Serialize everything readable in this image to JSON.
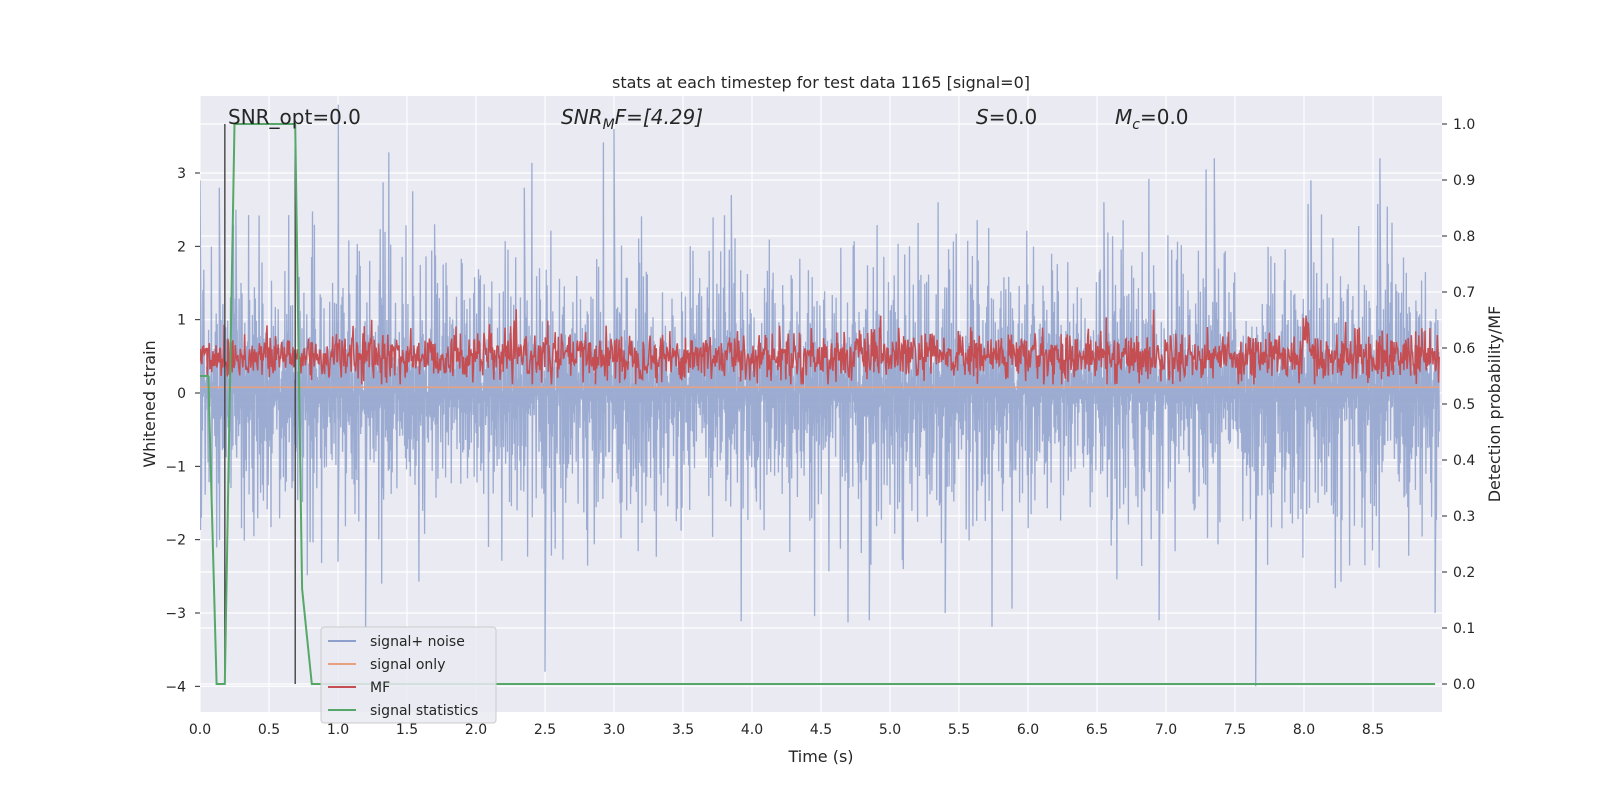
{
  "chart_data": {
    "type": "line",
    "title": "stats at each timestep for test data 1165 [signal=0]",
    "xlabel": "Time (s)",
    "ylabel": "Whitened strain",
    "ylabel_right": "Detection probability/MF",
    "xlim": [
      0.0,
      9.0
    ],
    "ylim": [
      -4.35,
      4.05
    ],
    "ylim_right": [
      -0.05,
      1.05
    ],
    "x_ticks": [
      "0.0",
      "0.5",
      "1.0",
      "1.5",
      "2.0",
      "2.5",
      "3.0",
      "3.5",
      "4.0",
      "4.5",
      "5.0",
      "5.5",
      "6.0",
      "6.5",
      "7.0",
      "7.5",
      "8.0",
      "8.5"
    ],
    "y_ticks": [
      "3",
      "2",
      "1",
      "0",
      "−1",
      "−2",
      "−3",
      "−4"
    ],
    "y_ticks_right": [
      "1.0",
      "0.9",
      "0.8",
      "0.7",
      "0.6",
      "0.5",
      "0.4",
      "0.3",
      "0.2",
      "0.1",
      "0.0"
    ],
    "grid": true,
    "legend_position": "lower-left",
    "annotations": {
      "snr_opt": "SNR_opt=0.0",
      "snr_mf_sym": "SNR",
      "snr_mf_sub": "M",
      "snr_mf_rest": "F=[4.29]",
      "s_sym": "S",
      "s_rest": "=0.0",
      "mc_sym": "M",
      "mc_sub": "c",
      "mc_rest": "=0.0"
    },
    "vertical_lines_x": [
      0.18,
      0.69
    ],
    "series": [
      {
        "name": "signal+ noise",
        "color": "#8da0cb",
        "description_values": "whitened strain noise, approximately zero-mean, amplitude mostly within ±2, peaks to 3.6 near 3.0 s and -4.0 near 7.65 s",
        "sample_peaks": [
          [
            0.0,
            2.9
          ],
          [
            0.14,
            2.8
          ],
          [
            0.26,
            2.5
          ],
          [
            1.0,
            -2.3
          ],
          [
            1.2,
            -3.2
          ],
          [
            1.7,
            2.3
          ],
          [
            2.35,
            2.8
          ],
          [
            2.5,
            -3.8
          ],
          [
            3.0,
            3.6
          ],
          [
            3.85,
            2.7
          ],
          [
            4.85,
            -3.1
          ],
          [
            5.4,
            -3.0
          ],
          [
            6.55,
            2.6
          ],
          [
            6.95,
            -3.1
          ],
          [
            7.35,
            3.2
          ],
          [
            7.65,
            -4.0
          ],
          [
            8.05,
            2.9
          ],
          [
            8.55,
            3.2
          ],
          [
            8.95,
            -3.0
          ]
        ]
      },
      {
        "name": "signal only",
        "color": "#e8a07f",
        "values_constant": 0.0
      },
      {
        "name": "MF",
        "color": "#c44e52",
        "axis": "right",
        "description_values": "matched-filter output fluctuating between roughly 0.53 and 0.65, peak near 0.65 at 8.0 s"
      },
      {
        "name": "signal statistics",
        "color": "#55a868",
        "axis": "right",
        "x": [
          0.0,
          0.06,
          0.12,
          0.18,
          0.25,
          0.69,
          0.74,
          0.81,
          8.95
        ],
        "y": [
          0.55,
          0.55,
          0.0,
          0.0,
          1.0,
          1.0,
          0.17,
          0.0,
          0.0
        ]
      }
    ]
  }
}
